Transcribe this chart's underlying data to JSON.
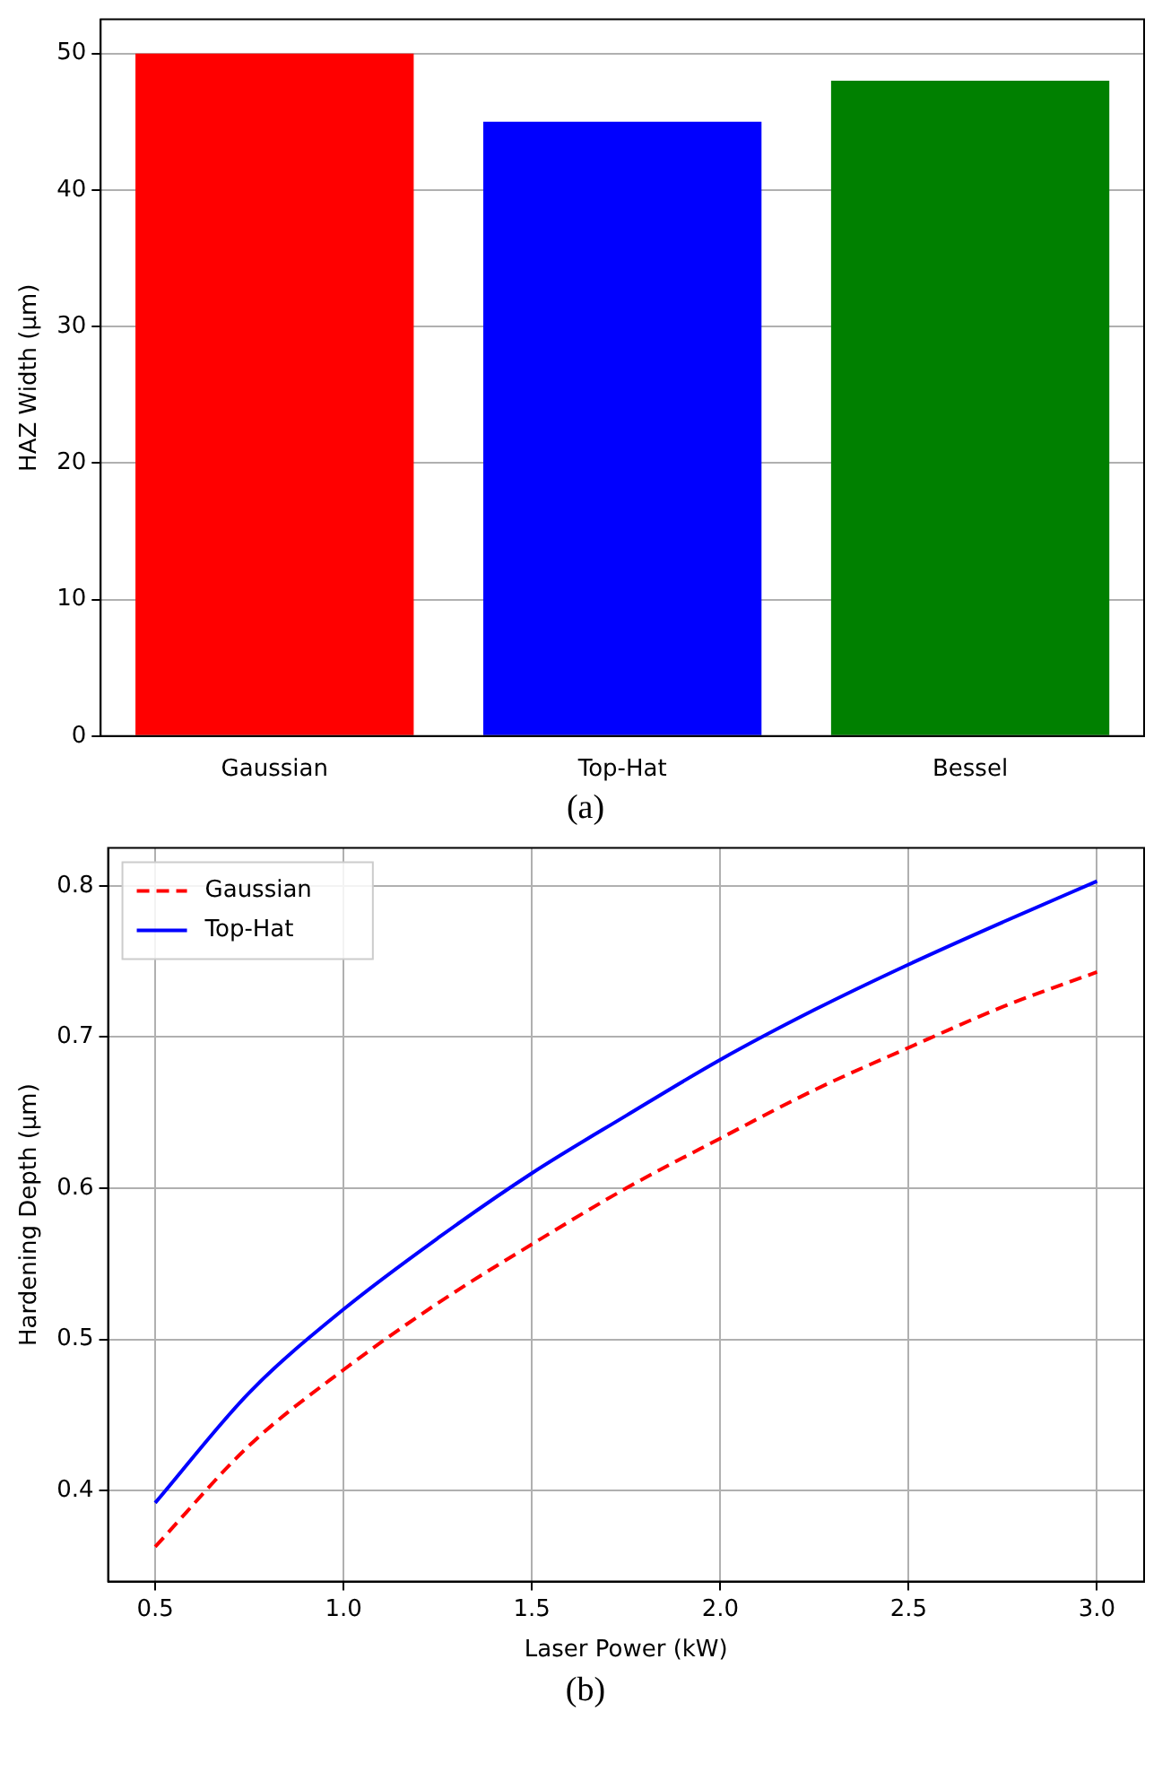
{
  "chart_data": [
    {
      "type": "bar",
      "categories": [
        "Gaussian",
        "Top-Hat",
        "Bessel"
      ],
      "values": [
        50,
        45,
        48
      ],
      "colors": [
        "#ff0000",
        "#0000ff",
        "#008000"
      ],
      "ylabel": "HAZ Width (µm)",
      "ylim": [
        0,
        52.5
      ],
      "yticks": [
        0,
        10,
        20,
        30,
        40,
        50
      ],
      "grid": "y",
      "annotations": [
        "(a)"
      ]
    },
    {
      "type": "line",
      "x": [
        0.5,
        0.75,
        1.0,
        1.25,
        1.5,
        1.75,
        2.0,
        2.25,
        2.5,
        2.75,
        3.0
      ],
      "series": [
        {
          "name": "Gaussian",
          "color": "#ff0000",
          "line_style": "dashed",
          "values": [
            0.363,
            0.43,
            0.48,
            0.524,
            0.563,
            0.6,
            0.633,
            0.665,
            0.693,
            0.72,
            0.743
          ]
        },
        {
          "name": "Top-Hat",
          "color": "#0000ff",
          "line_style": "solid",
          "values": [
            0.392,
            0.465,
            0.52,
            0.567,
            0.61,
            0.648,
            0.685,
            0.718,
            0.748,
            0.776,
            0.803
          ]
        }
      ],
      "xlabel": "Laser Power (kW)",
      "ylabel": "Hardening Depth (µm)",
      "xlim": [
        0.375,
        3.125
      ],
      "xticks": [
        0.5,
        {
          "value": 1,
          "label": "1.0"
        },
        1.5,
        {
          "value": 2,
          "label": "2.0"
        },
        2.5,
        {
          "value": 3,
          "label": "3.0"
        }
      ],
      "ylim": [
        0.34,
        0.825
      ],
      "yticks": [
        0.4,
        0.5,
        0.6,
        0.7,
        0.8
      ],
      "grid": true,
      "legend": "top left",
      "annotations": [
        "(b)"
      ]
    }
  ]
}
